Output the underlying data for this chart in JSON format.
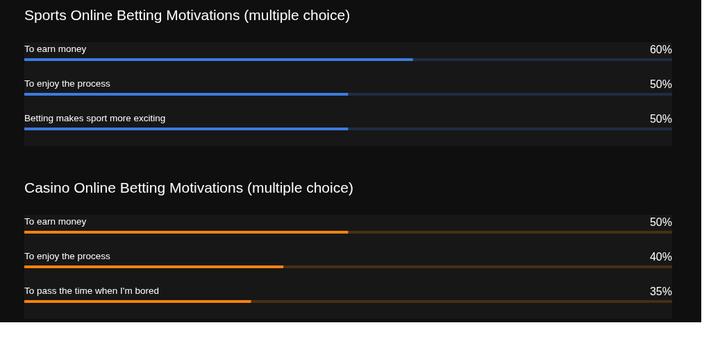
{
  "chart_data": [
    {
      "type": "bar",
      "orientation": "horizontal",
      "title": "Sports Online Betting Motivations (multiple choice)",
      "categories": [
        "To earn money",
        "To enjoy the process",
        "Betting makes sport more exciting"
      ],
      "series": [
        {
          "color": "#3d7be0",
          "values": [
            60,
            50,
            50
          ],
          "value_labels": [
            "60%",
            "50%",
            "50%"
          ]
        }
      ],
      "xlim": [
        0,
        100
      ],
      "tick_labels": "y"
    },
    {
      "type": "bar",
      "orientation": "horizontal",
      "title": "Casino Online Betting Motivations (multiple choice)",
      "categories": [
        "To earn money",
        "To enjoy the process",
        "To pass the time when I'm bored"
      ],
      "series": [
        {
          "color": "#f5820f",
          "values": [
            50,
            40,
            35
          ],
          "value_labels": [
            "50%",
            "40%",
            "35%"
          ]
        }
      ],
      "xlim": [
        0,
        100
      ],
      "tick_labels": "y"
    }
  ]
}
